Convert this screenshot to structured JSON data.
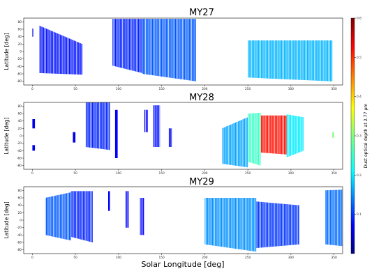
{
  "chart_data": {
    "type": "heatmap",
    "xlabel": "Solar Longitude [deg]",
    "xlim": [
      -10,
      360
    ],
    "ylim": [
      -90,
      90
    ],
    "colorbar": {
      "label": "Dust optical depth at 2.77 µm",
      "range": [
        0,
        0.6
      ],
      "ticks": [
        0.1,
        0.2,
        0.3,
        0.4,
        0.5,
        0.6
      ],
      "tick_labels": [
        "0.1",
        "0.2",
        "0.3",
        "0.4",
        "0.5",
        "0.6"
      ],
      "colormap": "jet"
    },
    "panels": [
      {
        "title": "MY27",
        "ylabel": "Latitude [deg]",
        "xticks": [
          0,
          50,
          100,
          150,
          200,
          250,
          300,
          350
        ],
        "yticks": [
          -80,
          -60,
          -40,
          -20,
          0,
          20,
          40,
          60,
          80
        ],
        "xtick_labels": [
          "0",
          "50",
          "100",
          "150",
          "200",
          "250",
          "300",
          "350"
        ],
        "ytick_labels": [
          "-80",
          "-60",
          "-40",
          "-20",
          "0",
          "20",
          "40",
          "60",
          "80"
        ],
        "segments": [
          {
            "ls0": 0,
            "ls1": 1,
            "lat_top": [
              62,
              62
            ],
            "lat_bot": [
              40,
              40
            ],
            "tau": 0.05
          },
          {
            "ls0": 8,
            "ls1": 58,
            "lat_top": [
              70,
              20
            ],
            "lat_bot": [
              -58,
              -62
            ],
            "tau": 0.08
          },
          {
            "ls0": 93,
            "ls1": 135,
            "lat_top": [
              88,
              88
            ],
            "lat_bot": [
              -38,
              -62
            ],
            "tau": 0.09
          },
          {
            "ls0": 128,
            "ls1": 190,
            "lat_top": [
              88,
              88
            ],
            "lat_bot": [
              -60,
              -80
            ],
            "tau": 0.12
          },
          {
            "ls0": 250,
            "ls1": 348,
            "lat_top": [
              30,
              30
            ],
            "lat_bot": [
              -70,
              -80
            ],
            "tau": 0.17
          }
        ]
      },
      {
        "title": "MY28",
        "ylabel": "Latitude [deg]",
        "xticks": [
          0,
          50,
          100,
          150,
          200,
          250,
          300,
          350
        ],
        "yticks": [
          -80,
          -60,
          -40,
          -20,
          0,
          20,
          40,
          60,
          80
        ],
        "xtick_labels": [
          "0",
          "50",
          "100",
          "150",
          "200",
          "250",
          "300",
          "350"
        ],
        "ytick_labels": [
          "-80",
          "-60",
          "-40",
          "-20",
          "0",
          "20",
          "40",
          "60",
          "80"
        ],
        "segments": [
          {
            "ls0": 0,
            "ls1": 3,
            "lat_top": [
              45,
              45
            ],
            "lat_bot": [
              20,
              20
            ],
            "tau": 0.06
          },
          {
            "ls0": 0,
            "ls1": 3,
            "lat_top": [
              -25,
              -25
            ],
            "lat_bot": [
              -40,
              -40
            ],
            "tau": 0.06
          },
          {
            "ls0": 47,
            "ls1": 50,
            "lat_top": [
              10,
              10
            ],
            "lat_bot": [
              -18,
              -18
            ],
            "tau": 0.06
          },
          {
            "ls0": 62,
            "ls1": 90,
            "lat_top": [
              90,
              90
            ],
            "lat_bot": [
              -30,
              -38
            ],
            "tau": 0.09
          },
          {
            "ls0": 96,
            "ls1": 99,
            "lat_top": [
              70,
              70
            ],
            "lat_bot": [
              -60,
              -60
            ],
            "tau": 0.07
          },
          {
            "ls0": 130,
            "ls1": 134,
            "lat_top": [
              70,
              70
            ],
            "lat_bot": [
              10,
              10
            ],
            "tau": 0.07
          },
          {
            "ls0": 140,
            "ls1": 148,
            "lat_top": [
              82,
              82
            ],
            "lat_bot": [
              -30,
              -30
            ],
            "tau": 0.08
          },
          {
            "ls0": 158,
            "ls1": 162,
            "lat_top": [
              20,
              20
            ],
            "lat_bot": [
              -30,
              -30
            ],
            "tau": 0.06
          },
          {
            "ls0": 220,
            "ls1": 250,
            "lat_top": [
              20,
              50
            ],
            "lat_bot": [
              -75,
              -85
            ],
            "tau": 0.16
          },
          {
            "ls0": 250,
            "ls1": 265,
            "lat_top": [
              60,
              62
            ],
            "lat_bot": [
              -70,
              -80
            ],
            "tau": 0.25
          },
          {
            "ls0": 265,
            "ls1": 295,
            "lat_top": [
              55,
              55
            ],
            "lat_bot": [
              -45,
              -50
            ],
            "tau": 0.52
          },
          {
            "ls0": 295,
            "ls1": 315,
            "lat_top": [
              58,
              50
            ],
            "lat_bot": [
              -58,
              -40
            ],
            "tau": 0.2
          },
          {
            "ls0": 348,
            "ls1": 350,
            "lat_top": [
              10,
              10
            ],
            "lat_bot": [
              -5,
              -5
            ],
            "tau": 0.3
          }
        ]
      },
      {
        "title": "MY29",
        "ylabel": "Latitude [deg]",
        "xticks": [
          0,
          50,
          100,
          150,
          200,
          250,
          300,
          350
        ],
        "yticks": [
          -80,
          -60,
          -40,
          -20,
          0,
          20,
          40,
          60,
          80
        ],
        "xtick_labels": [
          "0",
          "50",
          "100",
          "150",
          "200",
          "250",
          "300",
          "350"
        ],
        "ytick_labels": [
          "-80",
          "-60",
          "-40",
          "-20",
          "0",
          "20",
          "40",
          "60",
          "80"
        ],
        "segments": [
          {
            "ls0": 15,
            "ls1": 45,
            "lat_top": [
              60,
              75
            ],
            "lat_bot": [
              -40,
              -55
            ],
            "tau": 0.12
          },
          {
            "ls0": 45,
            "ls1": 70,
            "lat_top": [
              78,
              78
            ],
            "lat_bot": [
              -45,
              -60
            ],
            "tau": 0.09
          },
          {
            "ls0": 88,
            "ls1": 90,
            "lat_top": [
              78,
              78
            ],
            "lat_bot": [
              25,
              25
            ],
            "tau": 0.07
          },
          {
            "ls0": 108,
            "ls1": 112,
            "lat_top": [
              78,
              78
            ],
            "lat_bot": [
              -20,
              -20
            ],
            "tau": 0.07
          },
          {
            "ls0": 125,
            "ls1": 130,
            "lat_top": [
              60,
              60
            ],
            "lat_bot": [
              -40,
              -40
            ],
            "tau": 0.07
          },
          {
            "ls0": 200,
            "ls1": 260,
            "lat_top": [
              60,
              60
            ],
            "lat_bot": [
              -65,
              -85
            ],
            "tau": 0.15
          },
          {
            "ls0": 260,
            "ls1": 310,
            "lat_top": [
              50,
              40
            ],
            "lat_bot": [
              -75,
              -65
            ],
            "tau": 0.1
          },
          {
            "ls0": 340,
            "ls1": 360,
            "lat_top": [
              80,
              82
            ],
            "lat_bot": [
              -65,
              -70
            ],
            "tau": 0.13
          }
        ]
      }
    ]
  }
}
